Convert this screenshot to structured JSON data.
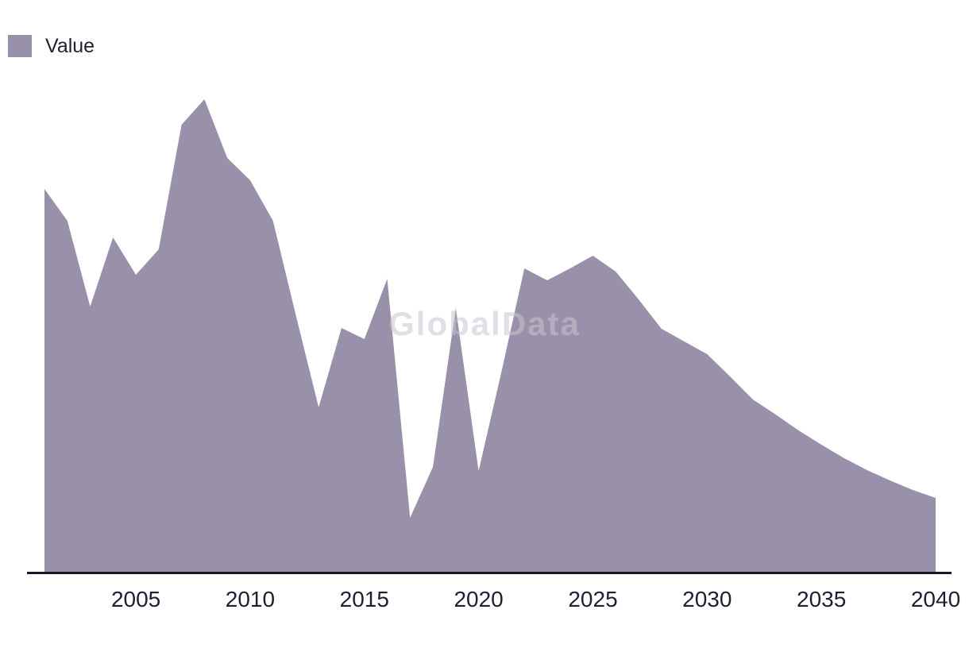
{
  "legend": {
    "label": "Value"
  },
  "watermark": {
    "text": "GlobalData"
  },
  "colors": {
    "area_fill": "#9991a9",
    "axis_line": "#191927",
    "tick_text": "#1f1f33",
    "background": "#ffffff",
    "watermark_text": "rgba(200,197,208,0.55)"
  },
  "chart_data": {
    "type": "area",
    "title": "",
    "xlabel": "",
    "ylabel": "",
    "grid": false,
    "legend_position": "top-left",
    "y_axis_visible": false,
    "value_units": "relative units (no y-axis labels shown; values estimated from plot height)",
    "x": [
      2001,
      2002,
      2003,
      2004,
      2005,
      2006,
      2007,
      2008,
      2009,
      2010,
      2011,
      2012,
      2013,
      2014,
      2015,
      2016,
      2017,
      2018,
      2019,
      2020,
      2021,
      2022,
      2023,
      2024,
      2025,
      2026,
      2027,
      2028,
      2029,
      2030,
      2031,
      2032,
      2033,
      2034,
      2035,
      2036,
      2037,
      2038,
      2039,
      2040
    ],
    "series": [
      {
        "name": "Value",
        "values": [
          483,
          443,
          335,
          422,
          375,
          407,
          564,
          596,
          522,
          494,
          443,
          324,
          208,
          308,
          294,
          370,
          69,
          133,
          333,
          128,
          253,
          383,
          368,
          383,
          399,
          379,
          344,
          307,
          291,
          275,
          247,
          218,
          199,
          179,
          161,
          144,
          129,
          116,
          104,
          94
        ]
      }
    ],
    "xticks": [
      2005,
      2010,
      2015,
      2020,
      2025,
      2030,
      2035,
      2040
    ],
    "ylim": [
      0,
      640
    ]
  }
}
